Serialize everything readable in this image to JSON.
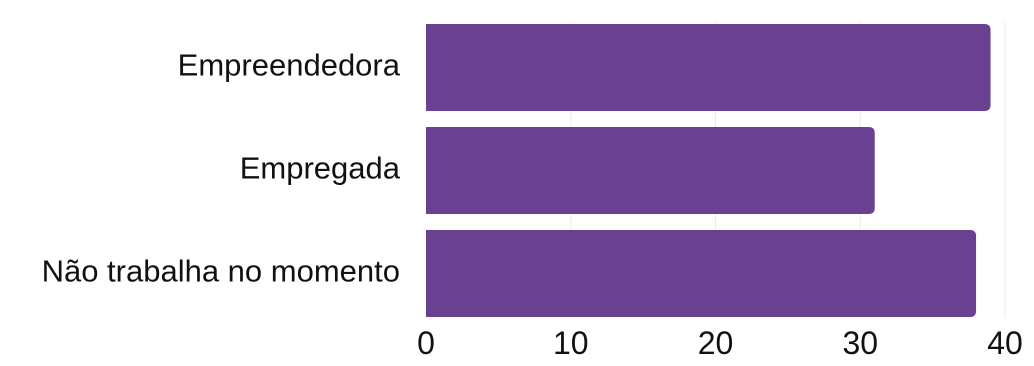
{
  "chart_data": {
    "type": "bar",
    "orientation": "horizontal",
    "categories": [
      "Empreendedora",
      "Empregada",
      "Não trabalha no momento"
    ],
    "values": [
      39,
      31,
      38
    ],
    "xlim": [
      0,
      40
    ],
    "xticks": [
      0,
      10,
      20,
      30,
      40
    ],
    "title": "",
    "xlabel": "",
    "ylabel": "",
    "grid": "vertical",
    "bar_color": "#6a4191"
  }
}
